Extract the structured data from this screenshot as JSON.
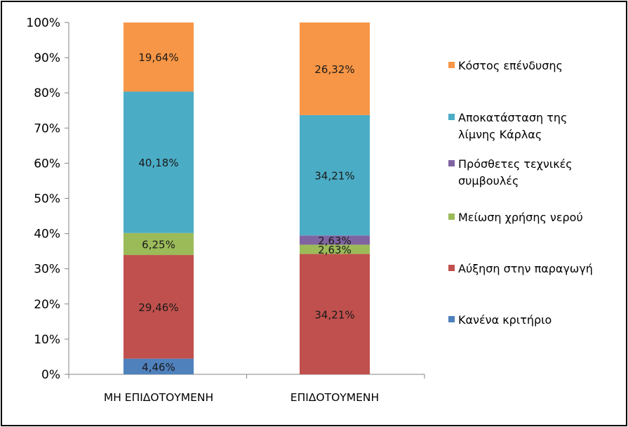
{
  "chart_data": {
    "type": "bar",
    "stacked": true,
    "percent": true,
    "categories": [
      "ΜΗ ΕΠΙΔΟΤΟΥΜΕΝΗ",
      "ΕΠΙΔΟΤΟΥΜΕΝΗ"
    ],
    "ylim": [
      0,
      100
    ],
    "yticks": [
      "0%",
      "10%",
      "20%",
      "30%",
      "40%",
      "50%",
      "60%",
      "70%",
      "80%",
      "90%",
      "100%"
    ],
    "grid": false,
    "legend_position": "right",
    "series": [
      {
        "name": "Κανένα κριτήριο",
        "color": "#4f81bd",
        "values": [
          4.46,
          0
        ],
        "labels": [
          "4,46%",
          ""
        ]
      },
      {
        "name": "Αύξηση στην παραγωγή",
        "color": "#c0504d",
        "values": [
          29.46,
          34.21
        ],
        "labels": [
          "29,46%",
          "34,21%"
        ]
      },
      {
        "name": "Μείωση χρήσης νερού",
        "color": "#9bbb59",
        "values": [
          6.25,
          2.63
        ],
        "labels": [
          "6,25%",
          "2,63%"
        ]
      },
      {
        "name": "Πρόσθετες τεχνικές συμβουλές",
        "color": "#8064a2",
        "values": [
          0,
          2.63
        ],
        "labels": [
          "",
          "2,63%"
        ]
      },
      {
        "name": "Αποκατάσταση της λίμνης Κάρλας",
        "color": "#4bacc6",
        "values": [
          40.18,
          34.21
        ],
        "labels": [
          "40,18%",
          "34,21%"
        ]
      },
      {
        "name": "Κόστος επένδυσης",
        "color": "#f79646",
        "values": [
          19.64,
          26.32
        ],
        "labels": [
          "19,64%",
          "26,32%"
        ]
      }
    ],
    "legend_lines": {
      "Κανένα κριτήριο": [
        "Κανένα κριτήριο"
      ],
      "Αύξηση στην παραγωγή": [
        "Αύξηση στην παραγωγή"
      ],
      "Μείωση χρήσης νερού": [
        "Μείωση χρήσης νερού"
      ],
      "Πρόσθετες τεχνικές συμβουλές": [
        "Πρόσθετες τεχνικές",
        "συμβουλές"
      ],
      "Αποκατάσταση της λίμνης Κάρλας": [
        "Αποκατάσταση της",
        "λίμνης Κάρλας"
      ],
      "Κόστος επένδυσης": [
        "Κόστος επένδυσης"
      ]
    }
  }
}
